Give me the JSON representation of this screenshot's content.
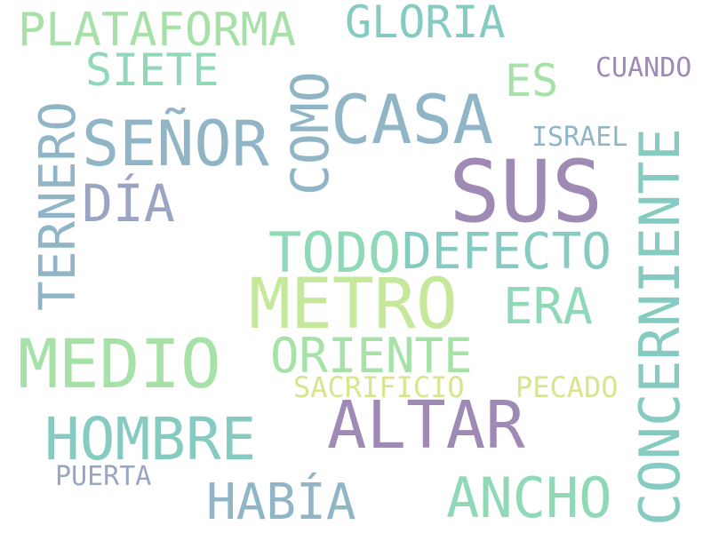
{
  "palette": {
    "green": "#a6e1a8",
    "teal": "#86cbc1",
    "slate": "#8fb5c6",
    "purple": "#9e8ab4",
    "lavender": "#9aa5c4",
    "lime": "#c6e89a",
    "yellow": "#d8e48e",
    "mint": "#8fd9b9"
  },
  "words": {
    "plataforma": "PLATAFORMA",
    "gloria": "GLORIA",
    "siete": "SIETE",
    "es": "ES",
    "cuando": "CUANDO",
    "ternero": "TERNERO",
    "senor": "SEÑOR",
    "como": "COMO",
    "casa": "CASA",
    "israel": "ISRAEL",
    "concerniente": "CONCERNIENTE",
    "sus": "SUS",
    "dia": "DÍA",
    "todo": "TODO",
    "defecto": "DEFECTO",
    "metro": "METRO",
    "era": "ERA",
    "medio": "MEDIO",
    "oriente": "ORIENTE",
    "sacrificio": "SACRIFICIO",
    "pecado": "PECADO",
    "altar": "ALTAR",
    "hombre": "HOMBRE",
    "puerta": "PUERTA",
    "habia": "HABÍA",
    "ancho": "ANCHO"
  }
}
